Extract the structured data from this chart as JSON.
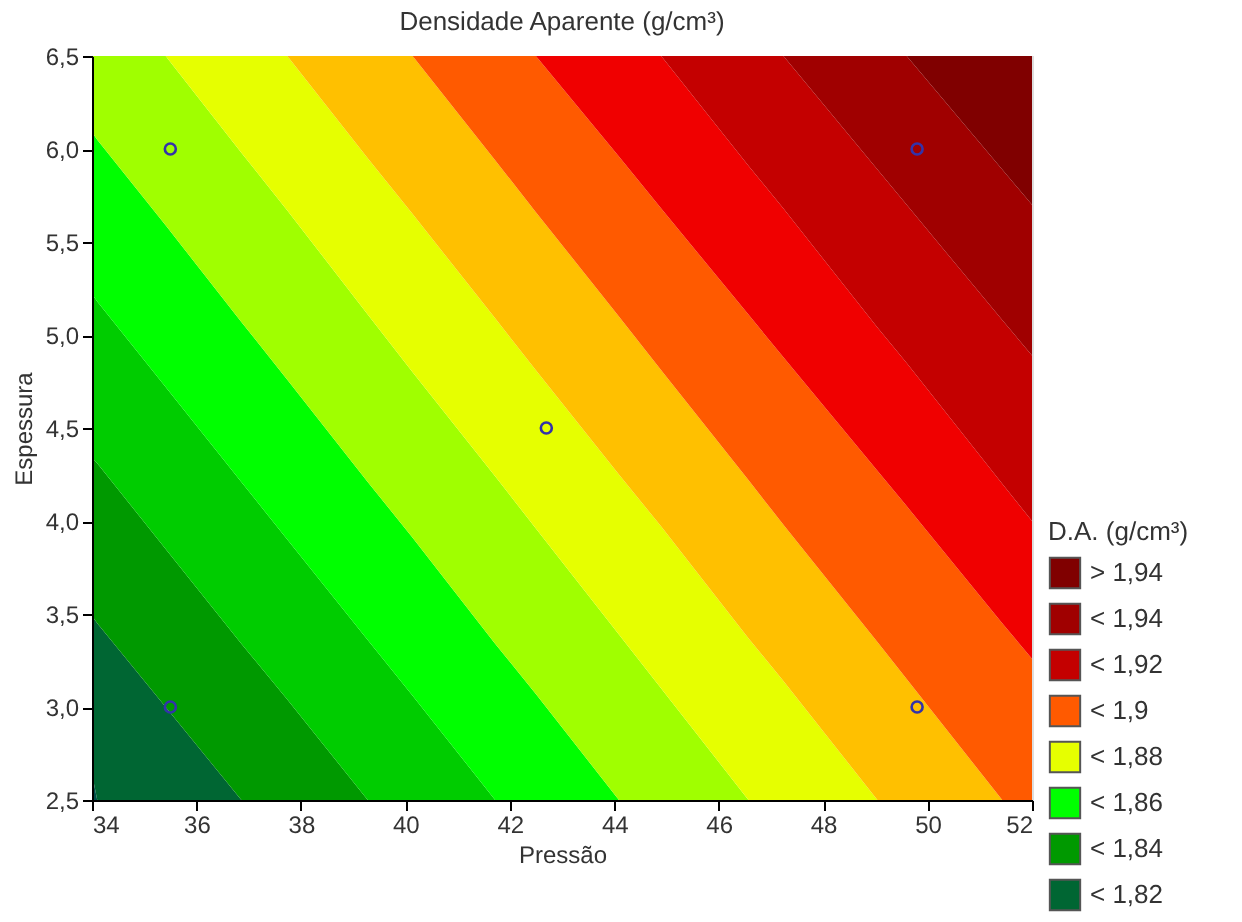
{
  "chart_data": {
    "type": "area",
    "title": "Densidade Aparente (g/cm³)",
    "xlabel": "Pressão",
    "ylabel": "Espessura",
    "legend_title": "D.A. (g/cm³)",
    "xlim": [
      34,
      52
    ],
    "xticks": [
      34,
      36,
      38,
      40,
      42,
      44,
      46,
      48,
      50,
      52
    ],
    "ylim": [
      2.5,
      6.5
    ],
    "yticks": [
      {
        "value": 2.5,
        "label": "2,5"
      },
      {
        "value": 3,
        "label": "3,0"
      },
      {
        "value": 3.5,
        "label": "3,5"
      },
      {
        "value": 4,
        "label": "4,0"
      },
      {
        "value": 4.5,
        "label": "4,5"
      },
      {
        "value": 5,
        "label": "5,0"
      },
      {
        "value": 5.5,
        "label": "5,5"
      },
      {
        "value": 6,
        "label": "6,0"
      },
      {
        "value": 6.5,
        "label": "6,5"
      }
    ],
    "legend": "bottom right",
    "x": [
      34,
      34.1,
      35.41,
      36.86,
      37.74,
      39.28,
      40.14,
      41.72,
      42.5,
      44.09,
      44.9,
      46.57,
      47.24,
      49.04,
      49.6,
      51.43,
      52
    ],
    "series": [
      {
        "color": "#00504a",
        "values": [
          2.64,
          2.5,
          null,
          null,
          null,
          null,
          null,
          null,
          null,
          null,
          null,
          null,
          null,
          null,
          null,
          null,
          null
        ]
      },
      {
        "name": "< 1,82",
        "color": "#006633",
        "values": [
          3.49,
          3.45,
          3.0,
          2.5,
          null,
          null,
          null,
          null,
          null,
          null,
          null,
          null,
          null,
          null,
          null,
          null,
          null
        ]
      },
      {
        "name": "< 1,84",
        "color": "#009900",
        "values": [
          4.34,
          4.31,
          3.85,
          3.34,
          3.04,
          2.5,
          null,
          null,
          null,
          null,
          null,
          null,
          null,
          null,
          null,
          null,
          null
        ]
      },
      {
        "color": "#00cc00",
        "values": [
          5.22,
          5.18,
          4.72,
          4.21,
          3.9,
          3.36,
          3.06,
          2.5,
          null,
          null,
          null,
          null,
          null,
          null,
          null,
          null,
          null
        ]
      },
      {
        "name": "< 1,86",
        "color": "#00ff00",
        "values": [
          6.09,
          6.05,
          5.59,
          5.07,
          4.76,
          4.21,
          3.91,
          3.34,
          3.07,
          2.5,
          null,
          null,
          null,
          null,
          null,
          null,
          null
        ]
      },
      {
        "color": "#a0ff00",
        "values": [
          6.5,
          6.5,
          6.5,
          5.98,
          5.67,
          5.11,
          4.8,
          4.24,
          3.96,
          3.39,
          3.1,
          2.5,
          null,
          null,
          null,
          null,
          null
        ]
      },
      {
        "name": "< 1,88",
        "color": "#e6ff00",
        "values": [
          null,
          null,
          6.5,
          6.5,
          6.5,
          5.95,
          5.65,
          5.09,
          4.81,
          4.25,
          3.97,
          3.37,
          3.14,
          2.5,
          null,
          null,
          null
        ]
      },
      {
        "color": "#ffc000",
        "values": [
          null,
          null,
          null,
          null,
          6.5,
          6.5,
          6.5,
          5.94,
          5.66,
          5.1,
          4.81,
          4.22,
          3.98,
          3.35,
          3.15,
          2.5,
          null
        ]
      },
      {
        "name": "< 1,9",
        "color": "#ff5a00",
        "values": [
          null,
          null,
          null,
          null,
          null,
          null,
          6.5,
          6.5,
          6.5,
          5.96,
          5.68,
          5.11,
          4.88,
          4.27,
          4.08,
          3.45,
          3.26
        ]
      },
      {
        "color": "#f00000",
        "values": [
          null,
          null,
          null,
          null,
          null,
          null,
          null,
          null,
          6.5,
          6.5,
          6.5,
          5.91,
          5.68,
          5.04,
          4.85,
          4.2,
          4.0
        ]
      },
      {
        "name": "< 1,92",
        "color": "#c40000",
        "values": [
          null,
          null,
          null,
          null,
          null,
          null,
          null,
          null,
          null,
          null,
          6.5,
          6.5,
          6.5,
          5.89,
          5.7,
          5.08,
          4.89
        ]
      },
      {
        "name": "< 1,94",
        "color": "#a00000",
        "values": [
          null,
          null,
          null,
          null,
          null,
          null,
          null,
          null,
          null,
          null,
          null,
          null,
          6.5,
          6.5,
          6.5,
          5.89,
          5.7
        ]
      },
      {
        "name": "> 1,94",
        "color": "#800000",
        "values": [
          null,
          null,
          null,
          null,
          null,
          null,
          null,
          null,
          null,
          null,
          null,
          null,
          null,
          null,
          6.5,
          6.5,
          6.5
        ]
      },
      {
        "type": "scatter",
        "color": "#3333aa",
        "marker": "circle",
        "x": [
          35.5,
          35.5,
          42.7,
          49.8,
          49.8
        ],
        "values": [
          3,
          6,
          4.5,
          3,
          6
        ]
      }
    ]
  }
}
